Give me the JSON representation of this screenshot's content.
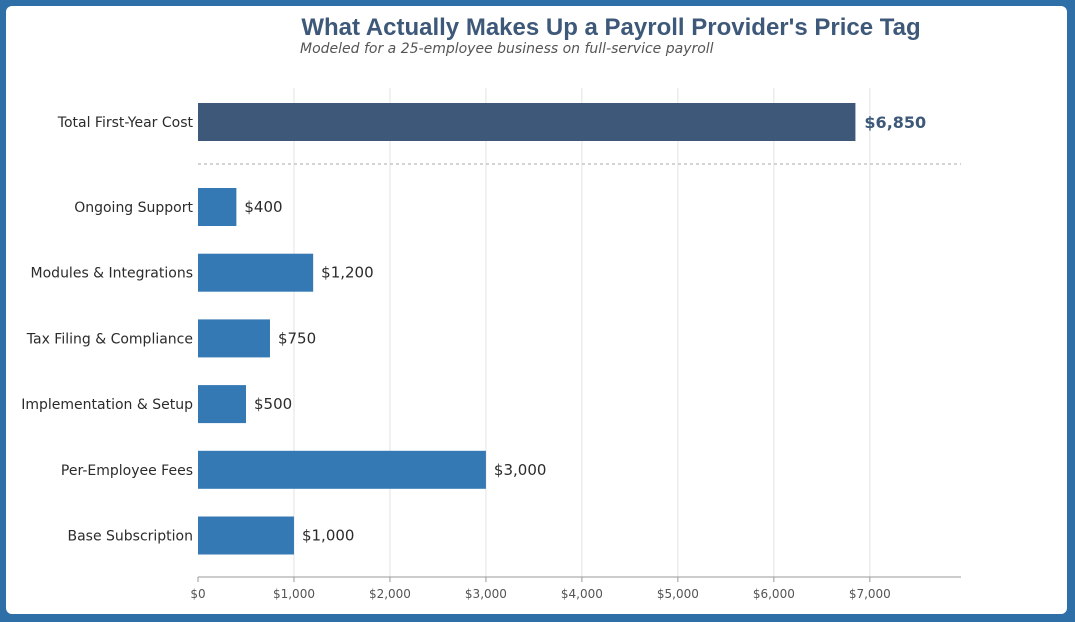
{
  "chart_data": {
    "type": "bar",
    "orientation": "horizontal",
    "title": "What Actually Makes Up a Payroll Provider's Price Tag",
    "subtitle": "Modeled for a 25-employee business on full-service payroll",
    "xlabel": "",
    "ylabel": "",
    "xlim": [
      0,
      7950
    ],
    "grid": "vertical",
    "total": {
      "label": "Total First-Year Cost",
      "value": 6850,
      "value_label": "$6,850",
      "color": "#3d5878"
    },
    "categories": [
      "Ongoing Support",
      "Modules & Integrations",
      "Tax Filing & Compliance",
      "Implementation & Setup",
      "Per-Employee Fees",
      "Base Subscription"
    ],
    "values": [
      400,
      1200,
      750,
      500,
      3000,
      1000
    ],
    "value_labels": [
      "$400",
      "$1,200",
      "$750",
      "$500",
      "$3,000",
      "$1,000"
    ],
    "bar_color": "#3479b4",
    "x_ticks": [
      0,
      1000,
      2000,
      3000,
      4000,
      5000,
      6000,
      7000
    ],
    "x_tick_labels": [
      "$0",
      "$1,000",
      "$2,000",
      "$3,000",
      "$4,000",
      "$5,000",
      "$6,000",
      "$7,000"
    ]
  }
}
